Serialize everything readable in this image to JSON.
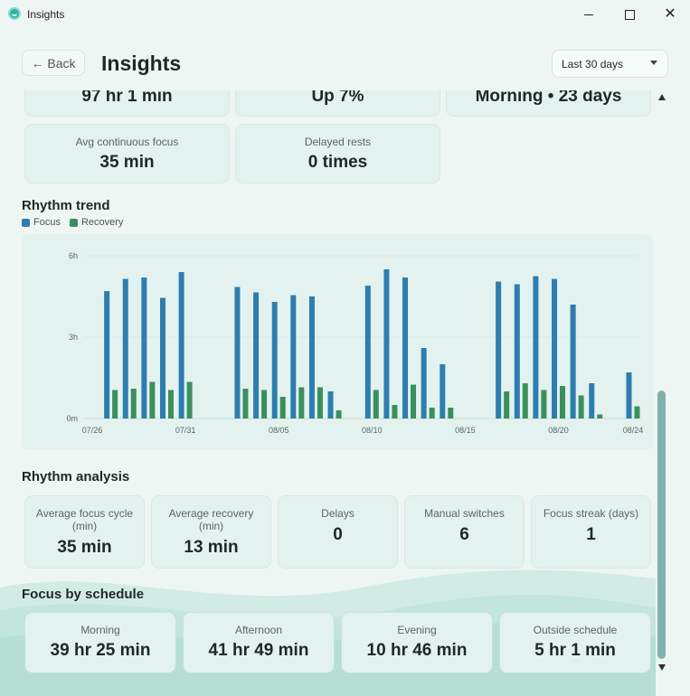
{
  "window": {
    "title": "Insights"
  },
  "header": {
    "back_label": "← Back",
    "title": "Insights",
    "range": "Last 30 days"
  },
  "top_cards": [
    {
      "value": "97 hr 1 min"
    },
    {
      "value": "Up 7%"
    },
    {
      "value": "Morning • 23 days"
    }
  ],
  "focus_cards": [
    {
      "label": "Avg continuous focus",
      "value": "35 min"
    },
    {
      "label": "Delayed rests",
      "value": "0 times"
    }
  ],
  "rhythm_trend": {
    "title": "Rhythm trend",
    "legend": [
      {
        "name": "Focus",
        "color": "#2e7db0"
      },
      {
        "name": "Recovery",
        "color": "#3a8f5c"
      }
    ]
  },
  "chart_data": {
    "type": "bar",
    "title": "Rhythm trend",
    "ylim": [
      0,
      6
    ],
    "y_ticks": [
      "0m",
      "3h",
      "6h"
    ],
    "x_ticks": [
      "07/26",
      "07/31",
      "08/05",
      "08/10",
      "08/15",
      "08/20",
      "08/24"
    ],
    "categories": [
      "07/26",
      "07/27",
      "07/28",
      "07/29",
      "07/30",
      "07/31",
      "08/01",
      "08/02",
      "08/03",
      "08/04",
      "08/05",
      "08/06",
      "08/07",
      "08/08",
      "08/09",
      "08/10",
      "08/11",
      "08/12",
      "08/13",
      "08/14",
      "08/15",
      "08/16",
      "08/17",
      "08/18",
      "08/19",
      "08/20",
      "08/21",
      "08/22",
      "08/23",
      "08/24"
    ],
    "series": [
      {
        "name": "Focus",
        "color": "#2e7db0",
        "values": [
          0,
          4.7,
          5.15,
          5.2,
          4.45,
          5.4,
          0,
          0,
          4.85,
          4.65,
          4.3,
          4.55,
          4.5,
          1.0,
          0,
          4.9,
          5.5,
          5.2,
          2.6,
          2.0,
          0,
          0,
          5.05,
          4.95,
          5.25,
          5.15,
          4.2,
          1.3,
          0,
          1.7
        ]
      },
      {
        "name": "Recovery",
        "color": "#3a8f5c",
        "values": [
          0,
          1.05,
          1.1,
          1.35,
          1.05,
          1.35,
          0,
          0,
          1.1,
          1.05,
          0.8,
          1.15,
          1.15,
          0.3,
          0,
          1.05,
          0.5,
          1.25,
          0.4,
          0.4,
          0,
          0,
          1.0,
          1.3,
          1.05,
          1.2,
          0.85,
          0.15,
          0,
          0.45
        ]
      }
    ]
  },
  "rhythm_analysis": {
    "title": "Rhythm analysis",
    "cards": [
      {
        "label": "Average focus cycle (min)",
        "value": "35 min"
      },
      {
        "label": "Average recovery (min)",
        "value": "13 min"
      },
      {
        "label": "Delays",
        "value": "0"
      },
      {
        "label": "Manual switches",
        "value": "6"
      },
      {
        "label": "Focus streak (days)",
        "value": "1"
      }
    ]
  },
  "schedule": {
    "title": "Focus by schedule",
    "cards": [
      {
        "label": "Morning",
        "value": "39 hr 25 min"
      },
      {
        "label": "Afternoon",
        "value": "41 hr 49 min"
      },
      {
        "label": "Evening",
        "value": "10 hr 46 min"
      },
      {
        "label": "Outside schedule",
        "value": "5 hr 1 min"
      }
    ]
  },
  "colors": {
    "accent": "#2bb5a4",
    "card_bg": "#e3f2ee",
    "page_bg": "#eef6f3"
  }
}
